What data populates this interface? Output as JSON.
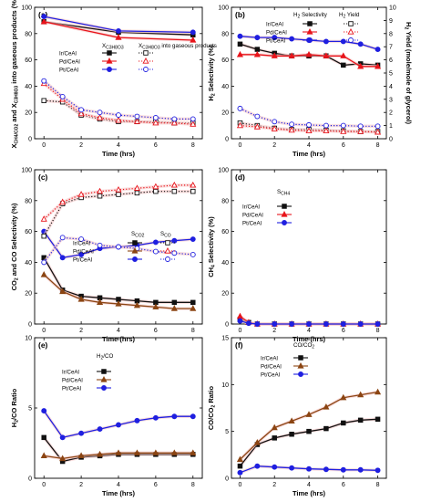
{
  "colors": {
    "ir": "#111111",
    "pd": "#e8141b",
    "pt": "#1f1fe0",
    "pd_brown": "#8b4513",
    "glow": "#f6c9c9"
  },
  "chart_data": [
    {
      "panel": "(a)",
      "type": "line",
      "xlabel": "Time (hrs)",
      "ylabel": "X_CH4/CO2 and X_C3H8O3 into gaseous products (%)",
      "xlim": [
        -0.5,
        8.5
      ],
      "ylim": [
        0,
        100
      ],
      "xticks": [
        "0",
        "2",
        "4",
        "6",
        "8"
      ],
      "yticks": [
        "0",
        "20",
        "40",
        "60",
        "80",
        "100"
      ],
      "legend_headers": [
        "X_C3H8O3",
        "X_C3H8O3 into gaseous products"
      ],
      "series": [
        {
          "name": "Ir/CeAl",
          "color": "#111111",
          "marker": "square",
          "style": "solid",
          "x": [
            0,
            4,
            8
          ],
          "y": [
            89,
            81,
            79
          ]
        },
        {
          "name": "Pd/CeAl",
          "color": "#e8141b",
          "marker": "triangle",
          "style": "solid",
          "x": [
            0,
            4,
            8
          ],
          "y": [
            89,
            77,
            75
          ]
        },
        {
          "name": "Pt/CeAl",
          "color": "#1f1fe0",
          "marker": "circle",
          "style": "solid",
          "x": [
            0,
            4,
            8
          ],
          "y": [
            93,
            82,
            81
          ]
        },
        {
          "name": "Ir/CeAl",
          "color": "#111111",
          "marker": "square",
          "style": "dotted",
          "x": [
            0,
            1,
            2,
            3,
            4,
            5,
            6,
            7,
            8
          ],
          "y": [
            29,
            28,
            18,
            15,
            13,
            13,
            13,
            12,
            12
          ]
        },
        {
          "name": "Pd/CeAl",
          "color": "#e8141b",
          "marker": "triangle",
          "style": "dotted",
          "x": [
            0,
            1,
            2,
            3,
            4,
            5,
            6,
            7,
            8
          ],
          "y": [
            42,
            30,
            19,
            16,
            14,
            13,
            12,
            12,
            11
          ]
        },
        {
          "name": "Pt/CeAl",
          "color": "#1f1fe0",
          "marker": "circle",
          "style": "dotted",
          "x": [
            0,
            1,
            2,
            3,
            4,
            5,
            6,
            7,
            8
          ],
          "y": [
            44,
            32,
            22,
            20,
            18,
            17,
            16,
            15,
            15
          ]
        }
      ]
    },
    {
      "panel": "(b)",
      "type": "line",
      "xlabel": "Time (hrs)",
      "ylabel": "H2 Selectivity (%)",
      "ylabel2": "H2 Yield (mole/mole of glycerol)",
      "xlim": [
        -0.5,
        8.5
      ],
      "ylim": [
        0,
        100
      ],
      "ylim2": [
        0,
        10
      ],
      "xticks": [
        "0",
        "2",
        "4",
        "6",
        "8"
      ],
      "yticks": [
        "0",
        "20",
        "40",
        "60",
        "80",
        "100"
      ],
      "yticks2": [
        "0",
        "1",
        "2",
        "3",
        "4",
        "5",
        "6",
        "7",
        "8",
        "9",
        "10"
      ],
      "legend_headers": [
        "H2 Selectivity",
        "H2 Yield"
      ],
      "series": [
        {
          "name": "Ir/CeAl",
          "color": "#111111",
          "marker": "square",
          "style": "solid",
          "x": [
            0,
            1,
            2,
            3,
            4,
            5,
            6,
            7,
            8
          ],
          "y": [
            72,
            68,
            65,
            63,
            63,
            63,
            56,
            57,
            56
          ]
        },
        {
          "name": "Pd/CeAl",
          "color": "#e8141b",
          "marker": "triangle",
          "style": "solid",
          "x": [
            0,
            1,
            2,
            3,
            4,
            5,
            6,
            7,
            8
          ],
          "y": [
            64,
            64,
            63,
            63,
            64,
            63,
            63,
            55,
            55
          ]
        },
        {
          "name": "Pt/CeAl",
          "color": "#1f1fe0",
          "marker": "circle",
          "style": "solid",
          "x": [
            0,
            1,
            2,
            3,
            4,
            5,
            6,
            7,
            8
          ],
          "y": [
            78,
            77,
            77,
            76,
            75,
            74,
            74,
            72,
            68
          ]
        },
        {
          "name": "Ir/CeAl",
          "color": "#111111",
          "marker": "square",
          "style": "dotted",
          "axis": "right",
          "x": [
            0,
            1,
            2,
            3,
            4,
            5,
            6,
            7,
            8
          ],
          "y": [
            1.2,
            1.0,
            0.8,
            0.7,
            0.7,
            0.65,
            0.6,
            0.55,
            0.55
          ]
        },
        {
          "name": "Pd/CeAl",
          "color": "#e8141b",
          "marker": "triangle",
          "style": "dotted",
          "axis": "right",
          "x": [
            0,
            1,
            2,
            3,
            4,
            5,
            6,
            7,
            8
          ],
          "y": [
            1.0,
            0.9,
            0.75,
            0.65,
            0.6,
            0.6,
            0.55,
            0.55,
            0.5
          ]
        },
        {
          "name": "Pt/CeAl",
          "color": "#1f1fe0",
          "marker": "circle",
          "style": "dotted",
          "axis": "right",
          "x": [
            0,
            1,
            2,
            3,
            4,
            5,
            6,
            7,
            8
          ],
          "y": [
            2.3,
            1.7,
            1.3,
            1.1,
            1.05,
            1.0,
            1.0,
            0.95,
            0.95
          ]
        }
      ]
    },
    {
      "panel": "(c)",
      "type": "line",
      "xlabel": "Time (hrs)",
      "ylabel": "CO2 and CO Selectivity (%)",
      "xlim": [
        -0.5,
        8.5
      ],
      "ylim": [
        0,
        100
      ],
      "xticks": [
        "0",
        "2",
        "4",
        "6",
        "8"
      ],
      "yticks": [
        "0",
        "20",
        "40",
        "60",
        "80",
        "100"
      ],
      "legend_headers": [
        "S_CO2",
        "S_CO"
      ],
      "series": [
        {
          "name": "Ir/CeAl",
          "color": "#111111",
          "marker": "square",
          "style": "solid",
          "x": [
            0,
            1,
            2,
            3,
            4,
            5,
            6,
            7,
            8
          ],
          "y": [
            43,
            22,
            18,
            17,
            16,
            15,
            14,
            14,
            14
          ]
        },
        {
          "name": "Pd/CeAl",
          "color": "#8b4513",
          "marker": "triangle",
          "style": "solid",
          "x": [
            0,
            1,
            2,
            3,
            4,
            5,
            6,
            7,
            8
          ],
          "y": [
            32,
            21,
            16,
            14,
            13,
            12,
            11,
            10,
            10
          ]
        },
        {
          "name": "Pt/CeAl",
          "color": "#1f1fe0",
          "marker": "circle",
          "style": "solid",
          "x": [
            0,
            1,
            2,
            3,
            4,
            5,
            6,
            7,
            8
          ],
          "y": [
            60,
            43,
            45,
            49,
            50,
            51,
            53,
            54,
            55
          ]
        },
        {
          "name": "Ir/CeAl",
          "color": "#111111",
          "marker": "square",
          "style": "dotted",
          "x": [
            0,
            1,
            2,
            3,
            4,
            5,
            6,
            7,
            8
          ],
          "y": [
            57,
            78,
            82,
            83,
            84,
            85,
            86,
            86,
            86
          ]
        },
        {
          "name": "Pd/CeAl",
          "color": "#e8141b",
          "marker": "triangle",
          "style": "dotted",
          "x": [
            0,
            1,
            2,
            3,
            4,
            5,
            6,
            7,
            8
          ],
          "y": [
            68,
            79,
            84,
            86,
            87,
            88,
            89,
            90,
            90
          ]
        },
        {
          "name": "Pt/CeAl",
          "color": "#1f1fe0",
          "marker": "circle",
          "style": "dotted",
          "x": [
            0,
            1,
            2,
            3,
            4,
            5,
            6,
            7,
            8
          ],
          "y": [
            40,
            56,
            55,
            51,
            50,
            49,
            47,
            46,
            45
          ]
        }
      ]
    },
    {
      "panel": "(d)",
      "type": "line",
      "xlabel": "Time (hrs)",
      "ylabel": "CH4 Selectivity (%)",
      "xlim": [
        -0.5,
        8.5
      ],
      "ylim": [
        0,
        100
      ],
      "xticks": [
        "0",
        "2",
        "4",
        "6",
        "8"
      ],
      "yticks": [
        "0",
        "20",
        "40",
        "60",
        "80",
        "100"
      ],
      "legend_headers": [
        "S_CH4"
      ],
      "series": [
        {
          "name": "Ir/CeAl",
          "color": "#111111",
          "marker": "square",
          "style": "solid",
          "x": [
            0,
            0.5,
            1,
            2,
            3,
            4,
            5,
            6,
            7,
            8
          ],
          "y": [
            3,
            1,
            0,
            0,
            0,
            0,
            0,
            0,
            0,
            0
          ]
        },
        {
          "name": "Pd/CeAl",
          "color": "#e8141b",
          "marker": "triangle",
          "style": "solid",
          "x": [
            0,
            0.5,
            1,
            2,
            3,
            4,
            5,
            6,
            7,
            8
          ],
          "y": [
            5,
            1,
            0,
            0,
            0,
            0,
            0,
            0,
            0,
            0
          ]
        },
        {
          "name": "Pt/CeAl",
          "color": "#1f1fe0",
          "marker": "circle",
          "style": "solid",
          "x": [
            0,
            0.5,
            1,
            2,
            3,
            4,
            5,
            6,
            7,
            8
          ],
          "y": [
            2,
            0.5,
            0,
            0,
            0,
            0,
            0,
            0,
            0,
            0
          ]
        }
      ]
    },
    {
      "panel": "(e)",
      "type": "line",
      "xlabel": "Time (hrs)",
      "ylabel": "H2/CO Ratio",
      "xlim": [
        -0.5,
        8.5
      ],
      "ylim": [
        0,
        10
      ],
      "xticks": [
        "0",
        "2",
        "4",
        "6",
        "8"
      ],
      "yticks": [
        "0",
        "5",
        "10"
      ],
      "legend_headers": [
        "H2/CO"
      ],
      "series": [
        {
          "name": "Ir/CeAl",
          "color": "#111111",
          "marker": "square",
          "style": "solid",
          "x": [
            0,
            1,
            2,
            3,
            4,
            5,
            6,
            7,
            8
          ],
          "y": [
            2.9,
            1.2,
            1.5,
            1.6,
            1.7,
            1.7,
            1.7,
            1.7,
            1.7
          ]
        },
        {
          "name": "Pd/CeAl",
          "color": "#8b4513",
          "marker": "triangle",
          "style": "solid",
          "x": [
            0,
            1,
            2,
            3,
            4,
            5,
            6,
            7,
            8
          ],
          "y": [
            1.6,
            1.4,
            1.6,
            1.7,
            1.8,
            1.8,
            1.8,
            1.8,
            1.8
          ]
        },
        {
          "name": "Pt/CeAl",
          "color": "#1f1fe0",
          "marker": "circle",
          "style": "solid",
          "x": [
            0,
            1,
            2,
            3,
            4,
            5,
            6,
            7,
            8
          ],
          "y": [
            4.8,
            2.9,
            3.2,
            3.5,
            3.8,
            4.1,
            4.3,
            4.4,
            4.4
          ]
        }
      ]
    },
    {
      "panel": "(f)",
      "type": "line",
      "xlabel": "Time (hrs)",
      "ylabel": "CO/CO2 Ratio",
      "xlim": [
        -0.5,
        8.5
      ],
      "ylim": [
        0,
        15
      ],
      "xticks": [
        "0",
        "2",
        "4",
        "6",
        "8"
      ],
      "yticks": [
        "0",
        "5",
        "10",
        "15"
      ],
      "legend_headers": [
        "CO/CO2"
      ],
      "series": [
        {
          "name": "Ir/CeAl",
          "color": "#111111",
          "marker": "square",
          "style": "solid",
          "x": [
            0,
            1,
            2,
            3,
            4,
            5,
            6,
            7,
            8
          ],
          "y": [
            1.3,
            3.6,
            4.3,
            4.7,
            5.0,
            5.3,
            5.9,
            6.2,
            6.3
          ]
        },
        {
          "name": "Pd/CeAl",
          "color": "#8b4513",
          "marker": "triangle",
          "style": "solid",
          "x": [
            0,
            1,
            2,
            3,
            4,
            5,
            6,
            7,
            8
          ],
          "y": [
            2.0,
            3.8,
            5.4,
            6.1,
            6.8,
            7.6,
            8.6,
            8.9,
            9.2
          ]
        },
        {
          "name": "Pt/CeAl",
          "color": "#1f1fe0",
          "marker": "circle",
          "style": "solid",
          "x": [
            0,
            1,
            2,
            3,
            4,
            5,
            6,
            7,
            8
          ],
          "y": [
            0.6,
            1.3,
            1.2,
            1.1,
            1.0,
            0.95,
            0.9,
            0.9,
            0.85
          ]
        }
      ]
    }
  ]
}
